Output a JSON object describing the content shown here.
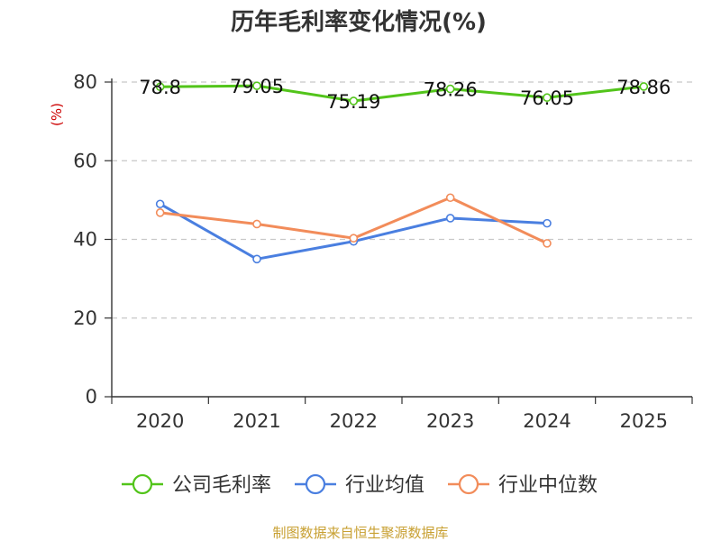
{
  "chart_data": {
    "type": "line",
    "title": "历年毛利率变化情况(%)",
    "unit_label": "(%)",
    "categories": [
      "2020",
      "2021",
      "2022",
      "2023",
      "2024",
      "2025"
    ],
    "ylim": [
      0,
      80
    ],
    "yticks": [
      0,
      20,
      40,
      60,
      80
    ],
    "grid": true,
    "legend_position": "bottom",
    "series": [
      {
        "name": "公司毛利率",
        "color": "#52c41a",
        "values": [
          78.8,
          79.05,
          75.19,
          78.26,
          76.05,
          78.86
        ],
        "labels": [
          "78.8",
          "79.05",
          "75.19",
          "78.26",
          "76.05",
          "78.86"
        ]
      },
      {
        "name": "行业均值",
        "color": "#4a7fe0",
        "values": [
          49,
          35,
          39.5,
          45.4,
          44.1,
          null
        ]
      },
      {
        "name": "行业中位数",
        "color": "#f28c5a",
        "values": [
          46.8,
          43.9,
          40.3,
          50.6,
          39,
          null
        ]
      }
    ]
  },
  "footer": {
    "source": "制图数据来自恒生聚源数据库"
  }
}
